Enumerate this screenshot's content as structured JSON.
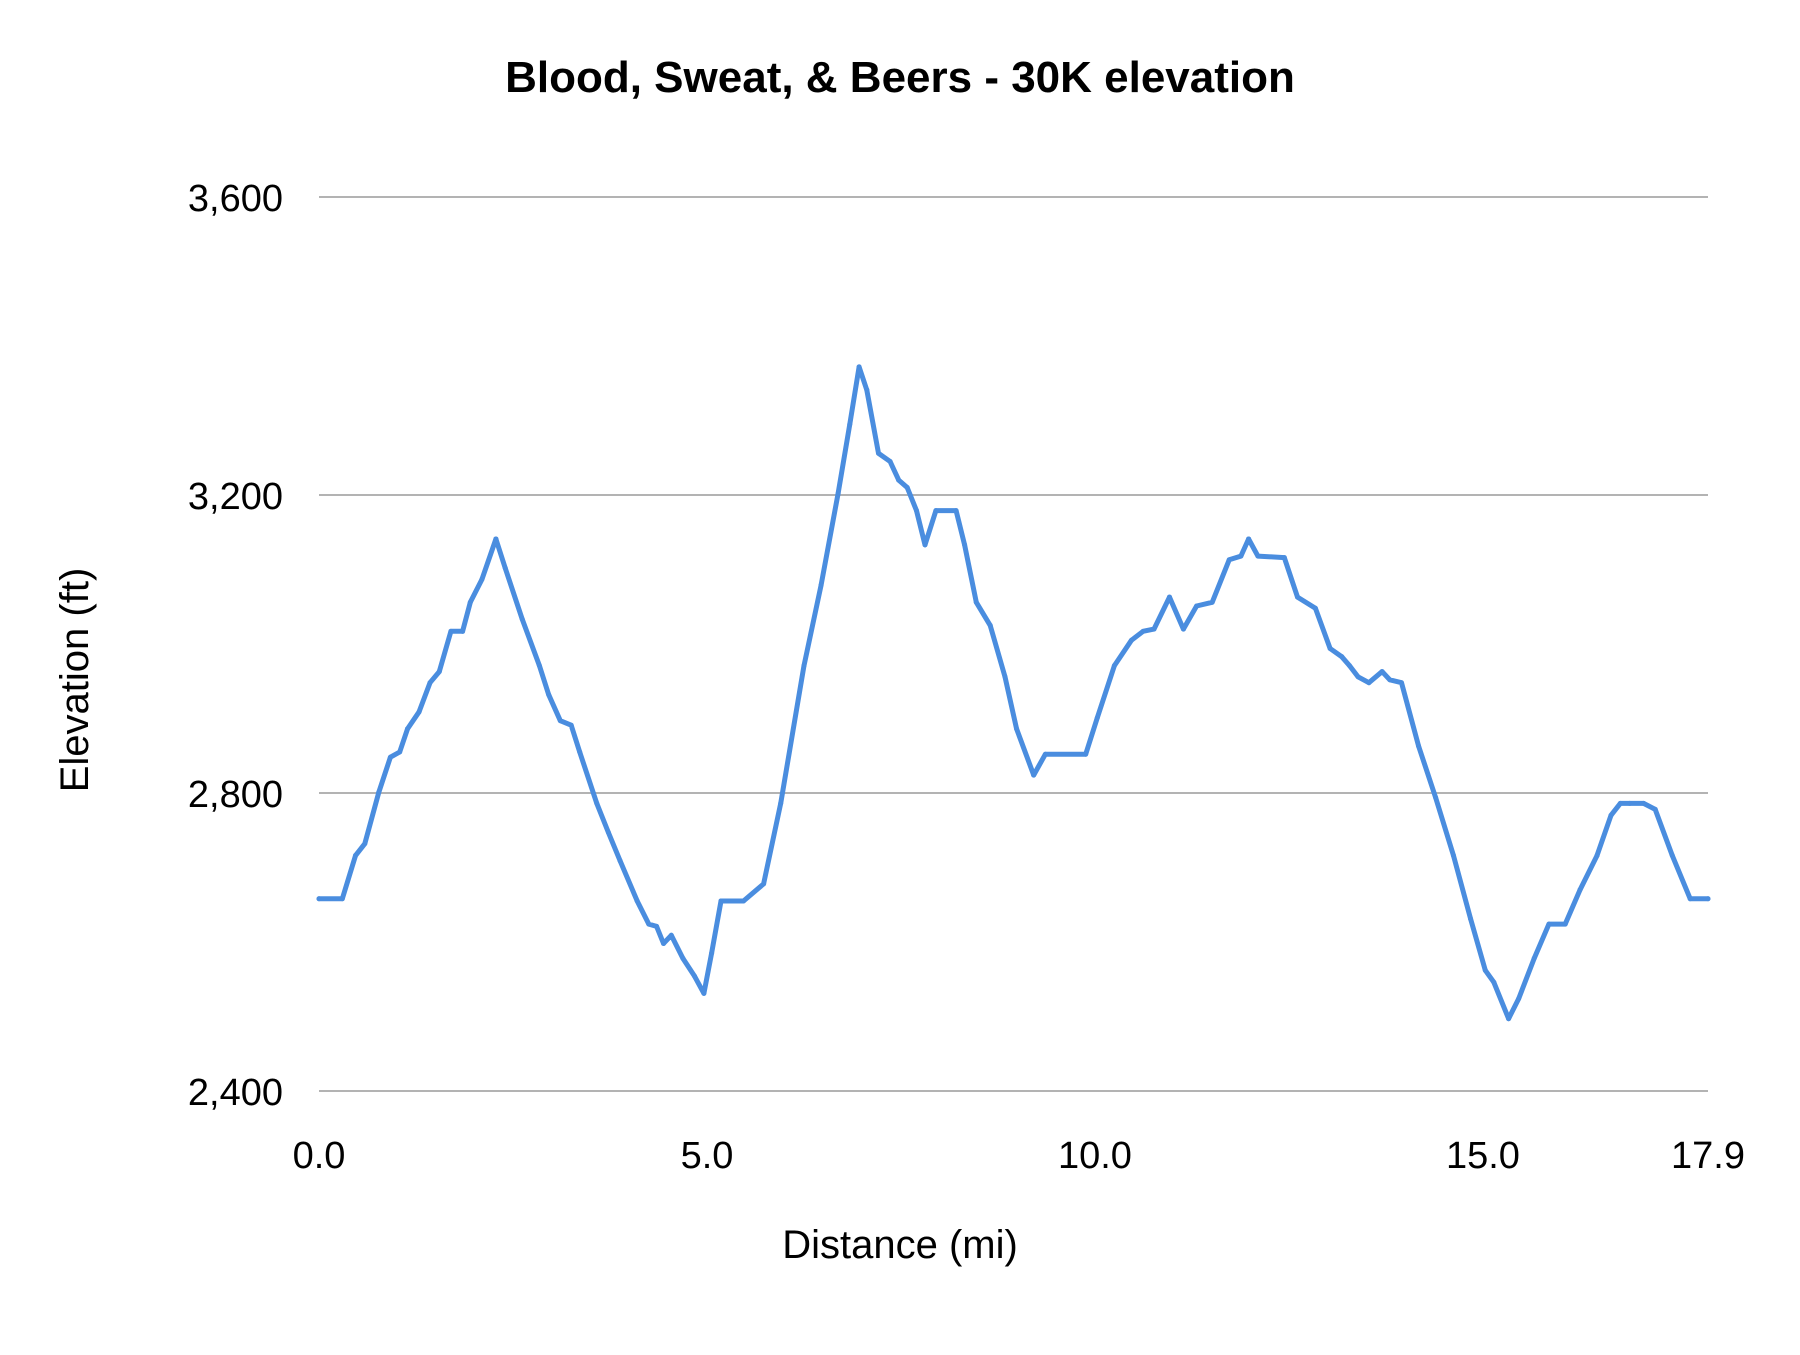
{
  "chart_data": {
    "type": "line",
    "title": "Blood, Sweat, & Beers  - 30K elevation",
    "xlabel": "Distance (mi)",
    "ylabel": "Elevation (ft)",
    "xlim": [
      0,
      17.9
    ],
    "ylim": [
      2400,
      3600
    ],
    "xticks": [
      "0.0",
      "5.0",
      "10.0",
      "15.0",
      "17.9"
    ],
    "xtick_values": [
      0,
      5,
      10,
      15,
      17.9
    ],
    "yticks": [
      "2,400",
      "2,800",
      "3,200",
      "3,600"
    ],
    "ytick_values": [
      2400,
      2800,
      3200,
      3600
    ],
    "grid": true,
    "legend": "none",
    "line_color": "#4a8ddf",
    "grid_color": "#b3b3b3",
    "series": [
      {
        "x": [
          0,
          0.3,
          0.47,
          0.59,
          0.77,
          0.92,
          1.04,
          1.14,
          1.29,
          1.43,
          1.55,
          1.7,
          1.85,
          1.95,
          2.1,
          2.28,
          2.4,
          2.62,
          2.84,
          2.96,
          3.11,
          3.25,
          3.36,
          3.58,
          3.73,
          3.88,
          4.1,
          4.25,
          4.35,
          4.44,
          4.54,
          4.69,
          4.84,
          4.96,
          5.06,
          5.18,
          5.47,
          5.73,
          5.95,
          6.25,
          6.47,
          6.69,
          6.84,
          6.96,
          7.06,
          7.21,
          7.36,
          7.47,
          7.58,
          7.7,
          7.81,
          7.95,
          8.21,
          8.32,
          8.47,
          8.65,
          8.84,
          8.99,
          9.21,
          9.36,
          9.88,
          10.03,
          10.25,
          10.47,
          10.62,
          10.76,
          10.96,
          11.14,
          11.31,
          11.51,
          11.73,
          11.88,
          11.98,
          12.1,
          12.44,
          12.61,
          12.84,
          13.03,
          13.18,
          13.28,
          13.39,
          13.53,
          13.7,
          13.8,
          13.95,
          14.17,
          14.39,
          14.62,
          14.84,
          15.03,
          15.14,
          15.33,
          15.46,
          15.66,
          15.85,
          16.06,
          16.25,
          16.47,
          16.65,
          16.77,
          16.89,
          17.07,
          17.22,
          17.44,
          17.67,
          17.9
        ],
        "y": [
          2658,
          2658,
          2716,
          2732,
          2801,
          2848,
          2855,
          2886,
          2909,
          2948,
          2963,
          3017,
          3017,
          3056,
          3087,
          3141,
          3102,
          3033,
          2971,
          2932,
          2897,
          2891,
          2855,
          2786,
          2747,
          2709,
          2655,
          2624,
          2621,
          2598,
          2609,
          2578,
          2554,
          2531,
          2585,
          2655,
          2655,
          2678,
          2786,
          2971,
          3079,
          3202,
          3295,
          3372,
          3341,
          3256,
          3245,
          3220,
          3210,
          3179,
          3133,
          3179,
          3179,
          3133,
          3056,
          3025,
          2956,
          2886,
          2824,
          2852,
          2852,
          2901,
          2971,
          3005,
          3017,
          3020,
          3063,
          3020,
          3051,
          3056,
          3113,
          3118,
          3141,
          3118,
          3116,
          3063,
          3048,
          2994,
          2983,
          2971,
          2956,
          2948,
          2963,
          2952,
          2948,
          2863,
          2794,
          2716,
          2631,
          2562,
          2546,
          2497,
          2524,
          2578,
          2624,
          2624,
          2670,
          2716,
          2770,
          2786,
          2786,
          2786,
          2778,
          2716,
          2658,
          2658
        ]
      }
    ]
  }
}
